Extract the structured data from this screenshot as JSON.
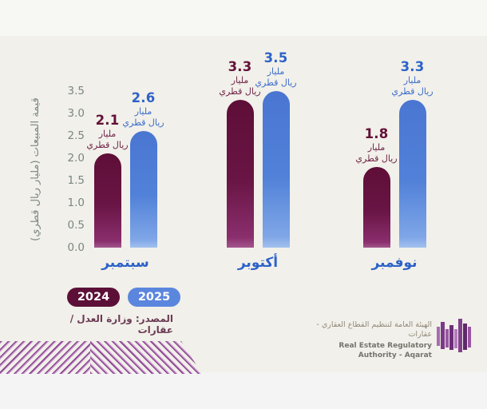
{
  "page": {
    "bg_top": "#f7f7f3",
    "bg_main": "#f1f0ea",
    "bg_bottom": "#f4f4f4"
  },
  "chart_data": {
    "type": "bar",
    "categories": [
      "سبتمبر",
      "أكتوبر",
      "نوفمبر"
    ],
    "series": [
      {
        "name": "2024",
        "values": [
          2.1,
          3.3,
          1.8
        ],
        "color_top": "#5e0e37",
        "color_bottom": "#8a2e6d",
        "label_color": "#641138"
      },
      {
        "name": "2025",
        "values": [
          2.6,
          3.5,
          3.3
        ],
        "color_top": "#4a76d2",
        "color_bottom": "#7fa6e7",
        "label_color": "#2d62c8"
      }
    ],
    "ylabel": "قيمة المبيعات (مليار ريال قطري)",
    "yticks": [
      3.5,
      3.0,
      2.5,
      2.0,
      1.5,
      1.0,
      0.5,
      0.0
    ],
    "ylim": [
      0,
      3.5
    ],
    "grid": false,
    "value_label_unit_lines": [
      "مليار",
      "ريال قطري"
    ],
    "legend_position": "bottom-left"
  },
  "legend": {
    "items": [
      {
        "label": "2024",
        "color": "#5c1038"
      },
      {
        "label": "2025",
        "color": "#5b86de"
      }
    ]
  },
  "source_text": "المصدر: وزارة العدل / عقارات",
  "footer_logo": {
    "title_ar": "الهيئة العامة لتنظيم القطاع العقاري - عقارات",
    "title_en": "Real Estate Regulatory Authority - Aqarat",
    "icon": "buildings-skyline-icon",
    "accent_color": "#8d4394"
  },
  "decor": {
    "pattern": "diagonal-chevron-stripes",
    "stripe_color": "#8c4691"
  }
}
